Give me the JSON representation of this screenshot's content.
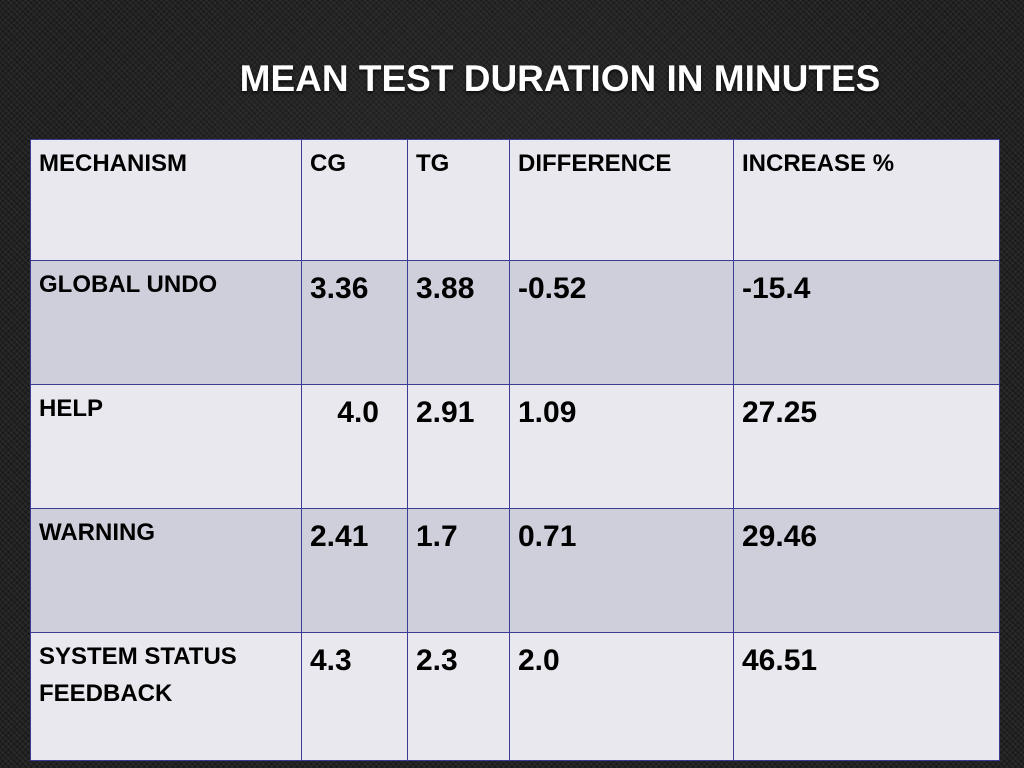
{
  "slide": {
    "title": "MEAN TEST DURATION IN MINUTES"
  },
  "table": {
    "headers": [
      "MECHANISM",
      "CG",
      "TG",
      "DIFFERENCE",
      "INCREASE %"
    ],
    "rows": [
      {
        "mechanism": "GLOBAL UNDO",
        "cg": "3.36",
        "tg": "3.88",
        "difference": "-0.52",
        "increase": "-15.4"
      },
      {
        "mechanism": "HELP",
        "cg": "4.0",
        "tg": "2.91",
        "difference": "1.09",
        "increase": "27.25"
      },
      {
        "mechanism": "WARNING",
        "cg": "2.41",
        "tg": "1.7",
        "difference": "0.71",
        "increase": "29.46"
      },
      {
        "mechanism": "SYSTEM STATUS FEEDBACK",
        "cg": "4.3",
        "tg": "2.3",
        "difference": "2.0",
        "increase": "46.51"
      }
    ]
  },
  "colors": {
    "background": "#1c1c1c",
    "title_text": "#ffffff",
    "row_light": "#e8e8ee",
    "row_dark": "#cfcfdc",
    "border": "#3c3c94"
  }
}
